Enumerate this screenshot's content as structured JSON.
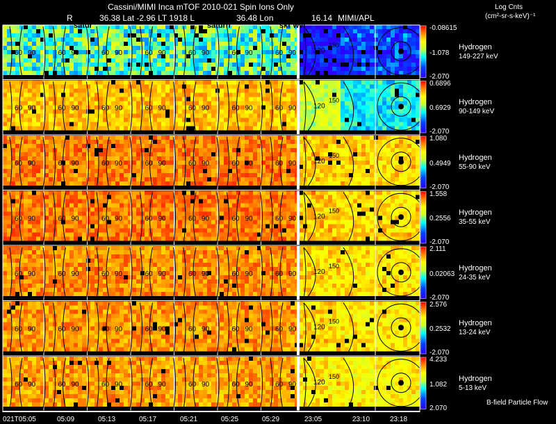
{
  "header": {
    "title": "Cassini/MIMI Inca mTOF  2010-021   Spin    Ions Only",
    "ephemeris_r_label": "R",
    "ephemeris_values": "36.38 Lat -2.96 LT 1918 L",
    "lon_value": "36.48 Lon",
    "l_value": "16.14",
    "institution": "MIMI/APL",
    "units_line1": "Log Cnts",
    "units_line2": "(cm²-sr-s-keV)⁻¹"
  },
  "overlay_labels": {
    "saturn_1": "satur",
    "saturn_2": "saturn",
    "skr_wvl": "skr wvl"
  },
  "time_labels": [
    "021T05:05",
    "05:09",
    "05:13",
    "05:17",
    "05:21",
    "05:25",
    "05:29",
    "23:05",
    "23:10",
    "23:18"
  ],
  "pitch_contours": [
    "60",
    "90",
    "120",
    "150"
  ],
  "footer_legend": "B-field Particle Flow",
  "colors": {
    "blue": "#0000ff",
    "cyan": "#00ffff",
    "yellow": "#ffff00",
    "orange": "#ff9900",
    "red": "#ff0000",
    "grid": "#ffffff",
    "gap": "#000000"
  },
  "chart_data": {
    "type": "heatmap",
    "title": "Cassini/MIMI Inca mTOF  2010-021   Spin    Ions Only",
    "colorbar_label": "Log Cnts (cm²-sr-s-keV)⁻¹",
    "xlabel": "",
    "ylabel": "",
    "x_ticks": [
      "021T05:05",
      "05:09",
      "05:13",
      "05:17",
      "05:21",
      "05:25",
      "05:29",
      "23:05",
      "23:10",
      "23:18"
    ],
    "panels": [
      {
        "species": "Hydrogen",
        "energy": "149-227 keV",
        "scale_max": "-0.08615",
        "scale_mid": "-1.078",
        "scale_min": "-2.070",
        "level": 0.48
      },
      {
        "species": "Hydrogen",
        "energy": "90-149 keV",
        "scale_max": "0.6896",
        "scale_mid": "0.6929",
        "scale_min": "-2.070",
        "level": 0.78
      },
      {
        "species": "Hydrogen",
        "energy": "55-90 keV",
        "scale_max": "1.080",
        "scale_mid": "0.4949",
        "scale_min": "-2.070",
        "level": 0.86
      },
      {
        "species": "Hydrogen",
        "energy": "35-55 keV",
        "scale_max": "1.558",
        "scale_mid": "0.2556",
        "scale_min": "-2.070",
        "level": 0.86
      },
      {
        "species": "Hydrogen",
        "energy": "24-35 keV",
        "scale_max": "2.111",
        "scale_mid": "0.02063",
        "scale_min": "-2.070",
        "level": 0.84
      },
      {
        "species": "Hydrogen",
        "energy": "13-24 keV",
        "scale_max": "2.576",
        "scale_mid": "0.2532",
        "scale_min": "-2.070",
        "level": 0.83
      },
      {
        "species": "Hydrogen",
        "energy": "5-13 keV",
        "scale_max": "4.233",
        "scale_mid": "1.082",
        "scale_min": "2.070",
        "level": 0.82
      }
    ]
  }
}
